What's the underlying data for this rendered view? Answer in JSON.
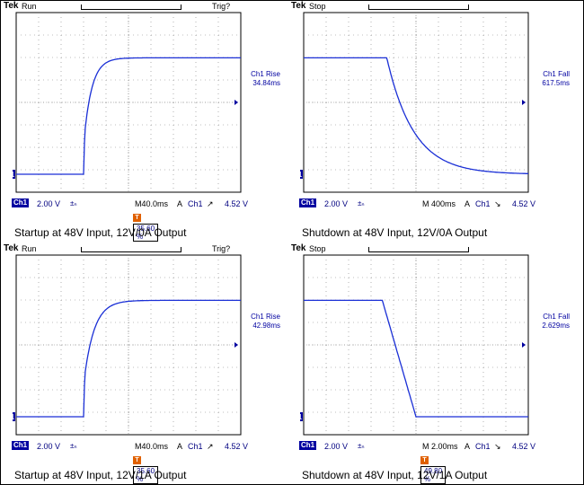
{
  "panels": [
    {
      "header": {
        "brand": "Tek",
        "state": "Run",
        "trig": "Trig?"
      },
      "measurement": {
        "label": "Ch1 Rise",
        "value": "34.84ms"
      },
      "footer": {
        "channel": "Ch1",
        "volts": "2.00 V",
        "bw": "±ₙ",
        "timebase": "M40.0ms",
        "mode": "A",
        "source": "Ch1",
        "slope": "↗",
        "level": "4.52 V"
      },
      "trigger_position": {
        "icon": "T",
        "percent": "35.60 %"
      },
      "caption": "Startup at 48V Input, 12V/0A Output",
      "waveform": {
        "type": "rise-exp",
        "low": 0.0,
        "high": 0.81,
        "start": 0.3,
        "tau": 0.035
      }
    },
    {
      "header": {
        "brand": "Tek",
        "state": "Stop",
        "trig": ""
      },
      "measurement": {
        "label": "Ch1 Fall",
        "value": "617.5ms"
      },
      "footer": {
        "channel": "Ch1",
        "volts": "2.00 V",
        "bw": "±ₙ",
        "timebase": "M 400ms",
        "mode": "A",
        "source": "Ch1",
        "slope": "↘",
        "level": "4.52 V"
      },
      "trigger_position": {
        "icon": "",
        "percent": ""
      },
      "caption": "Shutdown at 48V Input, 12V/0A Output",
      "waveform": {
        "type": "fall-exp",
        "low": 0.0,
        "high": 0.81,
        "start": 0.37,
        "tau": 0.12
      }
    },
    {
      "header": {
        "brand": "Tek",
        "state": "Run",
        "trig": "Trig?"
      },
      "measurement": {
        "label": "Ch1 Rise",
        "value": "42.98ms"
      },
      "footer": {
        "channel": "Ch1",
        "volts": "2.00 V",
        "bw": "±ₙ",
        "timebase": "M40.0ms",
        "mode": "A",
        "source": "Ch1",
        "slope": "↗",
        "level": "4.52 V"
      },
      "trigger_position": {
        "icon": "T",
        "percent": "35.60 %"
      },
      "caption": "Startup at 48V Input, 12V/1A Output",
      "waveform": {
        "type": "rise-exp",
        "low": 0.0,
        "high": 0.81,
        "start": 0.3,
        "tau": 0.045
      }
    },
    {
      "header": {
        "brand": "Tek",
        "state": "Stop",
        "trig": ""
      },
      "measurement": {
        "label": "Ch1 Fall",
        "value": "2.629ms"
      },
      "footer": {
        "channel": "Ch1",
        "volts": "2.00 V",
        "bw": "±ₙ",
        "timebase": "M 2.00ms",
        "mode": "A",
        "source": "Ch1",
        "slope": "↘",
        "level": "4.52 V"
      },
      "trigger_position": {
        "icon": "T",
        "percent": "49.80 %"
      },
      "caption": "Shutdown at 48V Input, 12V/1A Output",
      "waveform": {
        "type": "fall-linear",
        "low": 0.0,
        "high": 0.81,
        "start": 0.35,
        "end": 0.5
      }
    }
  ],
  "colors": {
    "trace": "#1a2fd6",
    "grid": "#808080",
    "accent": "#e06000",
    "label": "#0000a0"
  },
  "icons": {
    "ground_marker": "ground-marker-icon",
    "trigger_level": "trigger-level-arrow-icon",
    "trigger_position": "trigger-position-icon"
  }
}
